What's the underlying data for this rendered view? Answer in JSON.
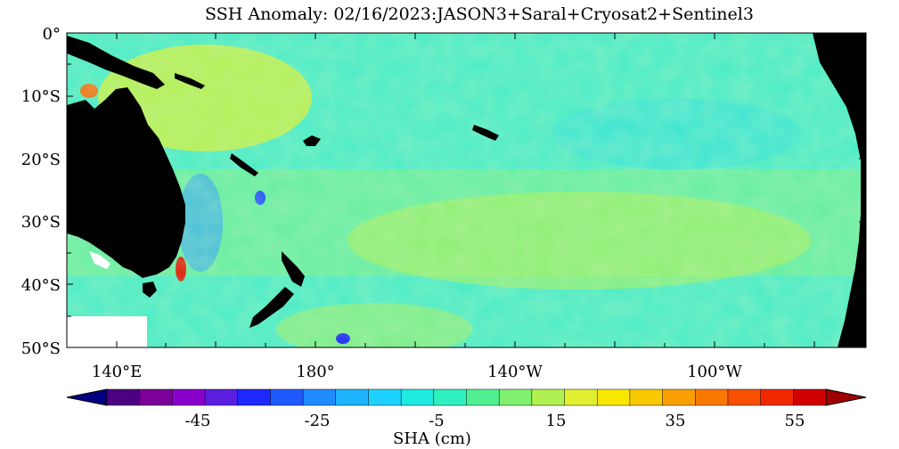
{
  "title": "SSH Anomaly: 02/16/2023:JASON3+Saral+Cryosat2+Sentinel3",
  "map": {
    "lat_ticks": [
      "0°",
      "10°S",
      "20°S",
      "30°S",
      "40°S",
      "50°S"
    ],
    "lon_ticks": [
      "140°E",
      "180°",
      "140°W",
      "100°W"
    ],
    "lat_range": [
      0,
      -50
    ],
    "lon_range": [
      127,
      290
    ]
  },
  "colorbar": {
    "tick_labels": [
      "-45",
      "-25",
      "-5",
      "15",
      "35",
      "55"
    ],
    "label": "SHA (cm)",
    "colors": [
      "#000080",
      "#4b0082",
      "#7a0099",
      "#8a00cc",
      "#5a1ee0",
      "#1e28ff",
      "#1e5aff",
      "#1e8cff",
      "#1eb4ff",
      "#1ed2ff",
      "#1eeae0",
      "#30f0c0",
      "#50f090",
      "#80f070",
      "#b0f050",
      "#e0f030",
      "#f8e800",
      "#f8c800",
      "#f8a000",
      "#f87800",
      "#f85000",
      "#f02800",
      "#d00000",
      "#a00000"
    ]
  },
  "colors": {
    "land": "#000000",
    "background_anomaly": "#40e8c0"
  }
}
